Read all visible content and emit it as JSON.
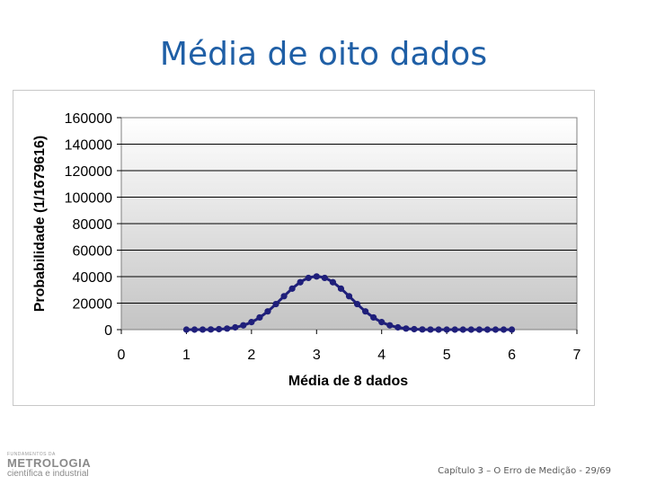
{
  "slide": {
    "title": "Média de oito dados",
    "footer": "Capítulo 3 – O Erro de Medição - 29/69",
    "logo": {
      "small_text": "FUNDAMENTOS DA",
      "brand": "METROLOGIA",
      "subtitle": "científica e industrial"
    }
  },
  "colors": {
    "series": "#1f1f7a",
    "plot_background_top": "#ffffff",
    "plot_background_bottom": "#c4c4c4",
    "title": "#1f5fa6"
  },
  "chart_data": {
    "type": "line",
    "title": "",
    "xlabel": "Média de 8 dados",
    "ylabel": "Probabilidade (1/1679616)",
    "xlim": [
      0,
      7
    ],
    "ylim": [
      0,
      160000
    ],
    "xticks": [
      "0",
      "1",
      "2",
      "3",
      "4",
      "5",
      "6",
      "7"
    ],
    "yticks": [
      "0",
      "20000",
      "40000",
      "60000",
      "80000",
      "100000",
      "120000",
      "140000",
      "160000"
    ],
    "grid": true,
    "legend": "none",
    "markers": true,
    "series": [
      {
        "x": [
          1,
          1.125,
          1.25,
          1.375,
          1.5,
          1.625,
          1.75,
          1.875,
          2,
          2.125,
          2.25,
          2.375,
          2.5,
          2.625,
          2.75,
          2.875,
          3,
          3.125,
          3.25,
          3.375,
          3.5,
          3.625,
          3.75,
          3.875,
          4,
          4.125,
          4.25,
          4.375,
          4.5,
          4.625,
          4.75,
          4.875,
          5,
          5.125,
          5.25,
          5.375,
          5.5,
          5.625,
          5.75,
          5.875,
          6
        ],
        "values": [
          1,
          8,
          36,
          120,
          330,
          792,
          1688,
          3240,
          5685,
          9192,
          13776,
          19272,
          25216,
          30936,
          35784,
          39024,
          40121,
          39024,
          35784,
          30936,
          25216,
          19272,
          13776,
          9192,
          5685,
          3240,
          1688,
          792,
          330,
          120,
          36,
          8,
          1,
          0,
          0,
          0,
          0,
          0,
          0,
          0,
          0
        ]
      }
    ]
  }
}
